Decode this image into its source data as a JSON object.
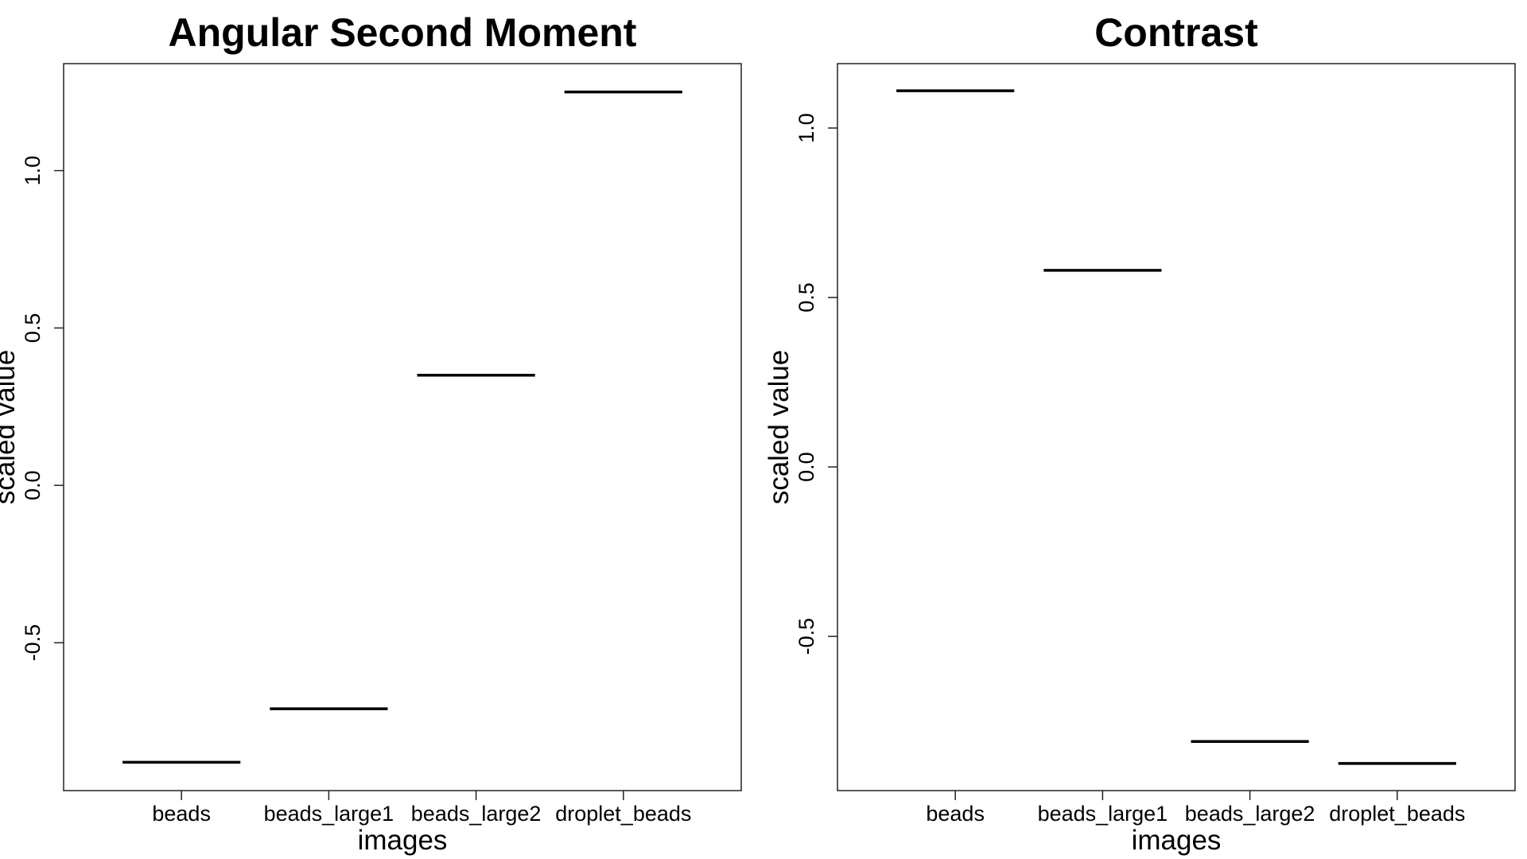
{
  "chart_data": [
    {
      "type": "box",
      "title": "Angular Second Moment",
      "xlabel": "images",
      "ylabel": "scaled value",
      "categories": [
        "beads",
        "beads_large1",
        "beads_large2",
        "droplet_beads"
      ],
      "values": [
        -0.88,
        -0.71,
        0.35,
        1.25
      ],
      "ylim": [
        -0.97,
        1.34
      ],
      "yticks": [
        -0.5,
        0.0,
        0.5,
        1.0
      ],
      "ytick_labels": [
        "-0.5",
        "0.0",
        "0.5",
        "1.0"
      ]
    },
    {
      "type": "box",
      "title": "Contrast",
      "xlabel": "images",
      "ylabel": "scaled value",
      "categories": [
        "beads",
        "beads_large1",
        "beads_large2",
        "droplet_beads"
      ],
      "values": [
        1.11,
        0.58,
        -0.81,
        -0.875
      ],
      "ylim": [
        -0.955,
        1.19
      ],
      "yticks": [
        -0.5,
        0.0,
        0.5,
        1.0
      ],
      "ytick_labels": [
        "-0.5",
        "0.0",
        "0.5",
        "1.0"
      ]
    }
  ]
}
